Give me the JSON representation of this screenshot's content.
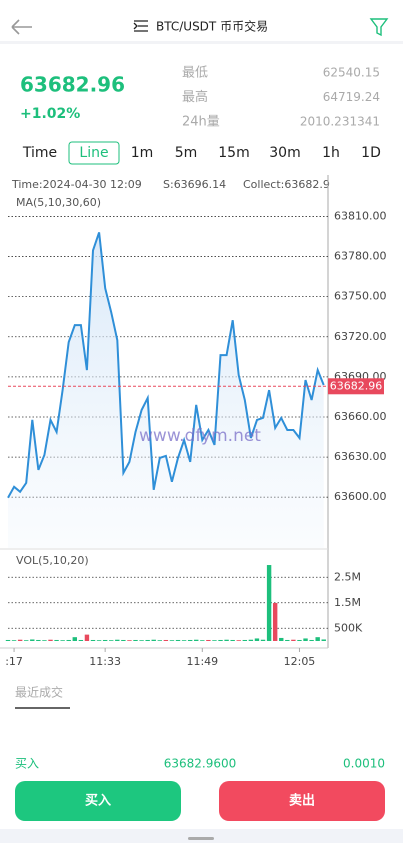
{
  "header": {
    "title": "BTC/USDT 币币交易"
  },
  "ticker": {
    "price": "63682.96",
    "change": "+1.02%",
    "stats": [
      {
        "label": "最低",
        "value": "62540.15"
      },
      {
        "label": "最高",
        "value": "64719.24"
      },
      {
        "label": "24h量",
        "value": "2010.231341"
      }
    ]
  },
  "intervals": [
    "Time",
    "Line",
    "1m",
    "5m",
    "15m",
    "30m",
    "1h",
    "1D"
  ],
  "selected_interval": 1,
  "chart_info": {
    "time": "Time:2024-04-30 12:09",
    "s": "S:63696.14",
    "collect": "Collect:63682.9",
    "watermark": "www.dfym.net"
  },
  "chart_data": [
    {
      "type": "line",
      "title": "MA(5,10,30,60)",
      "color": "#2f8fd8",
      "x": [
        0,
        1,
        2,
        3,
        4,
        5,
        6,
        7,
        8,
        9,
        10,
        11,
        12,
        13,
        14,
        15,
        16,
        17,
        18,
        19,
        20,
        21,
        22,
        23,
        24,
        25,
        26,
        27,
        28,
        29,
        30,
        31,
        32,
        33,
        34,
        35,
        36,
        37,
        38,
        39,
        40,
        41,
        42,
        43,
        44,
        45,
        46,
        47,
        48,
        49,
        50,
        51,
        52
      ],
      "values": [
        63599.6,
        63607.8,
        63604,
        63610.7,
        63657.8,
        63620.4,
        63631.6,
        63657.8,
        63648.8,
        63680.1,
        63716,
        63728.7,
        63728.7,
        63695.1,
        63784.6,
        63798.1,
        63756.3,
        63738.4,
        63717.5,
        63618.2,
        63626.4,
        63648.8,
        63665.2,
        63674.2,
        63605.5,
        63629.4,
        63630.9,
        63611.5,
        63629.4,
        63642.8,
        63626.4,
        63669,
        63642.8,
        63650.3,
        63639.1,
        63706.3,
        63706.3,
        63732.4,
        63691.3,
        63672.7,
        63644.3,
        63657.8,
        63659.3,
        63680.1,
        63651.8,
        63659.3,
        63650.3,
        63650.3,
        63644.3,
        63687.6,
        63672.7,
        63695.1,
        63683.9
      ],
      "xlim": [
        0,
        52.7
      ],
      "ylim": [
        63562,
        63841
      ],
      "xticks": [
        {
          "value": 1,
          "label": ":17"
        },
        {
          "value": 16,
          "label": "11:33"
        },
        {
          "value": 32,
          "label": "11:49"
        },
        {
          "value": 48,
          "label": "12:05"
        }
      ],
      "yticks": [
        {
          "value": 63810,
          "label": "63810.00"
        },
        {
          "value": 63780,
          "label": "63780.00"
        },
        {
          "value": 63750,
          "label": "63750.00"
        },
        {
          "value": 63720,
          "label": "63720.00"
        },
        {
          "value": 63690,
          "label": "63690.00"
        },
        {
          "value": 63660,
          "label": "63660.00"
        },
        {
          "value": 63630,
          "label": "63630.00"
        },
        {
          "value": 63600,
          "label": "63600.00"
        }
      ],
      "last_price": 63682.96,
      "last_price_color": "#e8495d",
      "grid": true
    },
    {
      "type": "bar",
      "title": "VOL(5,10,20)",
      "values": [
        40000,
        30000,
        50000,
        30000,
        60000,
        40000,
        30000,
        50000,
        40000,
        30000,
        40000,
        150000,
        40000,
        250000,
        40000,
        30000,
        40000,
        30000,
        50000,
        40000,
        30000,
        40000,
        30000,
        40000,
        50000,
        30000,
        40000,
        30000,
        40000,
        30000,
        40000,
        50000,
        30000,
        40000,
        30000,
        40000,
        50000,
        40000,
        30000,
        40000,
        50000,
        100000,
        50000,
        2980000,
        1490000,
        120000,
        40000,
        50000,
        40000,
        100000,
        40000,
        150000,
        60000
      ],
      "colors": [
        "#1dbf7c",
        "#1dbf7c",
        "#e8495d",
        "#1dbf7c",
        "#1dbf7c",
        "#1dbf7c",
        "#1dbf7c",
        "#e8495d",
        "#1dbf7c",
        "#1dbf7c",
        "#1dbf7c",
        "#1dbf7c",
        "#1dbf7c",
        "#e8495d",
        "#1dbf7c",
        "#1dbf7c",
        "#1dbf7c",
        "#1dbf7c",
        "#1dbf7c",
        "#1dbf7c",
        "#e8495d",
        "#1dbf7c",
        "#1dbf7c",
        "#1dbf7c",
        "#1dbf7c",
        "#1dbf7c",
        "#e8495d",
        "#1dbf7c",
        "#1dbf7c",
        "#1dbf7c",
        "#1dbf7c",
        "#1dbf7c",
        "#1dbf7c",
        "#e8495d",
        "#1dbf7c",
        "#1dbf7c",
        "#1dbf7c",
        "#1dbf7c",
        "#e8495d",
        "#1dbf7c",
        "#1dbf7c",
        "#1dbf7c",
        "#1dbf7c",
        "#1dbf7c",
        "#e8495d",
        "#1dbf7c",
        "#1dbf7c",
        "#e8495d",
        "#1dbf7c",
        "#1dbf7c",
        "#1dbf7c",
        "#1dbf7c",
        "#1dbf7c"
      ],
      "ylim": [
        0,
        3570000
      ],
      "yticks": [
        {
          "value": 2500000,
          "label": "2.5M"
        },
        {
          "value": 1500000,
          "label": "1.5M"
        },
        {
          "value": 500000,
          "label": "500K"
        }
      ],
      "grid": true
    }
  ],
  "trades": {
    "title": "最近成交",
    "rows": [
      [
        "买入",
        "63682.9600",
        "0.0010"
      ]
    ]
  },
  "buttons": [
    "买入",
    "卖出"
  ]
}
